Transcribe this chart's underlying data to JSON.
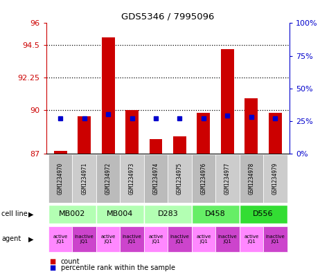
{
  "title": "GDS5346 / 7995096",
  "samples": [
    "GSM1234970",
    "GSM1234971",
    "GSM1234972",
    "GSM1234973",
    "GSM1234974",
    "GSM1234975",
    "GSM1234976",
    "GSM1234977",
    "GSM1234978",
    "GSM1234979"
  ],
  "bar_values": [
    87.2,
    89.6,
    95.0,
    90.0,
    88.0,
    88.2,
    89.8,
    94.2,
    90.8,
    89.8
  ],
  "dot_pcts": [
    27,
    27,
    30,
    27,
    27,
    27,
    27,
    29,
    28,
    27
  ],
  "y_min": 87,
  "y_max": 96,
  "y_ticks_left": [
    87,
    90,
    92.25,
    94.5,
    96
  ],
  "y_ticks_right_vals": [
    0,
    25,
    50,
    75,
    100
  ],
  "dotted_lines": [
    90,
    92.25,
    94.5
  ],
  "cell_lines": [
    {
      "label": "MB002",
      "span": [
        0,
        2
      ],
      "color": "#b3ffb3"
    },
    {
      "label": "MB004",
      "span": [
        2,
        4
      ],
      "color": "#b3ffb3"
    },
    {
      "label": "D283",
      "span": [
        4,
        6
      ],
      "color": "#b3ffb3"
    },
    {
      "label": "D458",
      "span": [
        6,
        8
      ],
      "color": "#66ee66"
    },
    {
      "label": "D556",
      "span": [
        8,
        10
      ],
      "color": "#33dd33"
    }
  ],
  "agents": [
    {
      "label": "active\nJQ1",
      "color": "#ff88ff"
    },
    {
      "label": "inactive\nJQ1",
      "color": "#cc44cc"
    },
    {
      "label": "active\nJQ1",
      "color": "#ff88ff"
    },
    {
      "label": "inactive\nJQ1",
      "color": "#cc44cc"
    },
    {
      "label": "active\nJQ1",
      "color": "#ff88ff"
    },
    {
      "label": "inactive\nJQ1",
      "color": "#cc44cc"
    },
    {
      "label": "active\nJQ1",
      "color": "#ff88ff"
    },
    {
      "label": "inactive\nJQ1",
      "color": "#cc44cc"
    },
    {
      "label": "active\nJQ1",
      "color": "#ff88ff"
    },
    {
      "label": "inactive\nJQ1",
      "color": "#cc44cc"
    }
  ],
  "bar_color": "#cc0000",
  "dot_color": "#0000cc",
  "bg_color": "#ffffff",
  "axis_color_left": "#cc0000",
  "axis_color_right": "#0000cc",
  "sample_box_colors": [
    "#bbbbbb",
    "#cccccc"
  ]
}
